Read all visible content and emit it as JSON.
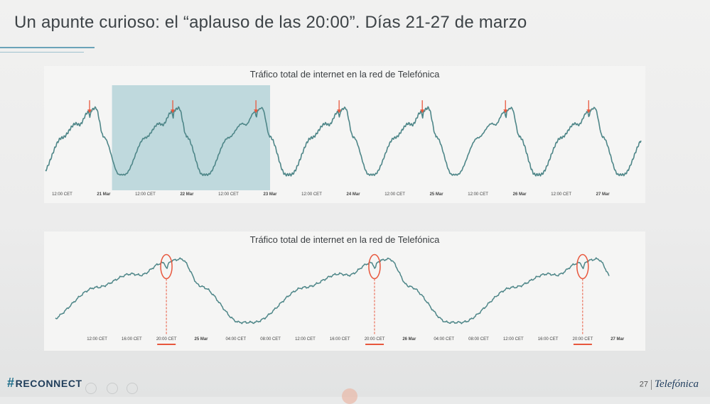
{
  "slide": {
    "title": "Un apunte curioso: el “aplauso de las 20:00”. Días 21-27 de marzo",
    "footer_brand_hash": "#",
    "footer_brand": "RECONNECT",
    "page_number": "27",
    "company": "Telefónica"
  },
  "colors": {
    "line": "#4e8688",
    "highlight": "#b5d3d8",
    "marker": "#e8573d",
    "accent_rule": "#6aa3b8"
  },
  "chart_data": [
    {
      "type": "line",
      "title": "Tráfico total de internet en la red de Telefónica",
      "xlabel": "",
      "ylabel": "",
      "x_ticks": [
        "12:00 CET",
        "21 Mar",
        "12:00 CET",
        "22 Mar",
        "12:00 CET",
        "23 Mar",
        "12:00 CET",
        "24 Mar",
        "12:00 CET",
        "25 Mar",
        "12:00 CET",
        "26 Mar",
        "12:00 CET",
        "27 Mar"
      ],
      "x_range_days": [
        20.3,
        27.46
      ],
      "highlight_range_days": [
        21.1,
        23.0
      ],
      "marker_points_days": [
        20.83,
        21.83,
        22.83,
        23.83,
        24.83,
        25.83,
        26.83
      ],
      "marker_symbol": "arrow",
      "grid": false,
      "legend": "none"
    },
    {
      "type": "line",
      "title": "Tráfico total de internet en la red de Telefónica",
      "xlabel": "",
      "ylabel": "",
      "x_ticks": [
        "12:00 CET",
        "16:00 CET",
        "20:00 CET",
        "25 Mar",
        "04:00 CET",
        "08:00 CET",
        "12:00 CET",
        "16:00 CET",
        "20:00 CET",
        "26 Mar",
        "04:00 CET",
        "08:00 CET",
        "12:00 CET",
        "16:00 CET",
        "20:00 CET",
        "27 Mar"
      ],
      "highlighted_ticks": [
        "20:00 CET"
      ],
      "x_range_days": [
        24.3,
        26.96
      ],
      "marker_points_days": [
        24.833,
        25.833,
        26.833
      ],
      "marker_symbol": "circle",
      "grid": false,
      "legend": "none"
    }
  ]
}
